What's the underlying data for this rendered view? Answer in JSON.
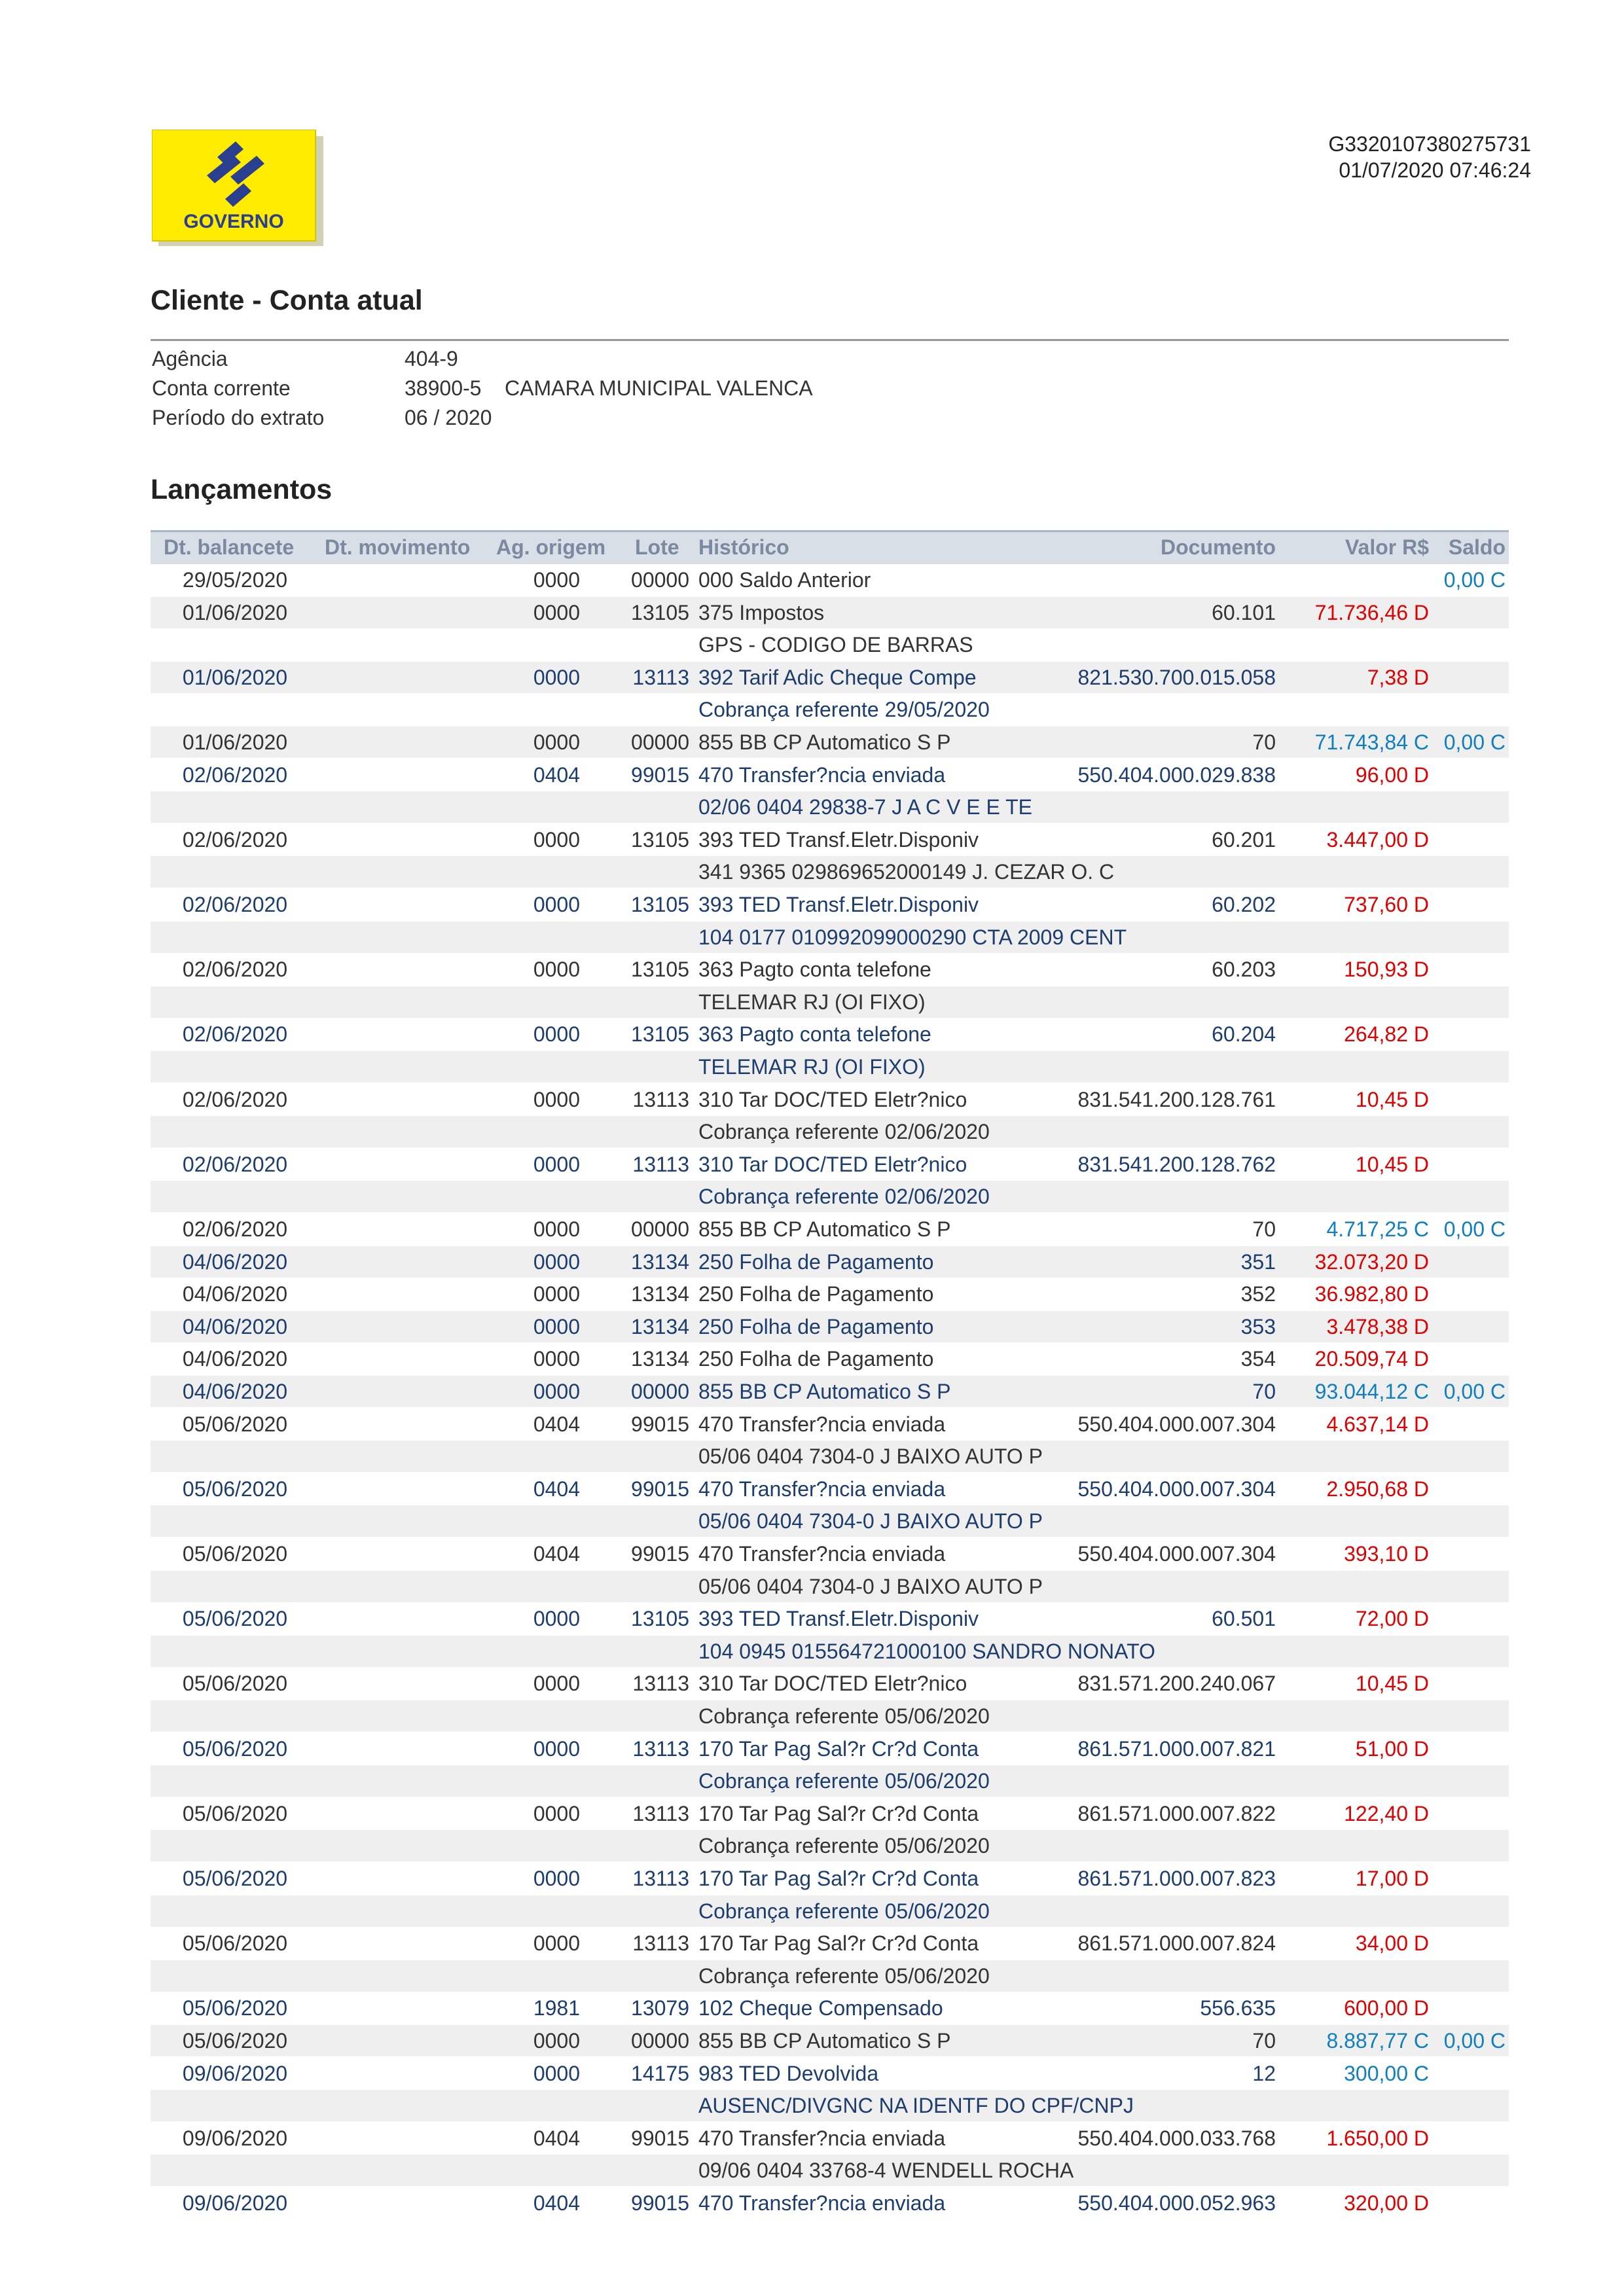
{
  "header": {
    "logo_text": "GOVERNO",
    "code": "G3320107380275731",
    "datetime": "01/07/2020 07:46:24"
  },
  "title": "Cliente - Conta atual",
  "info": [
    {
      "label": "Agência",
      "value": "404-9"
    },
    {
      "label": "Conta corrente",
      "value": "38900-5",
      "name": "CAMARA MUNICIPAL VALENCA"
    },
    {
      "label": "Período do extrato",
      "value": "06 / 2020"
    }
  ],
  "section_title": "Lançamentos",
  "table": {
    "headers": {
      "dt_balancete": "Dt. balancete",
      "dt_movimento": "Dt. movimento",
      "ag_origem": "Ag. origem",
      "lote": "Lote",
      "historico": "Histórico",
      "documento": "Documento",
      "valor": "Valor R$",
      "saldo": "Saldo"
    },
    "rows": [
      {
        "dt_balancete": "29/05/2020",
        "ag_origem": "0000",
        "lote": "00000",
        "historico": "000 Saldo Anterior",
        "saldo": "0,00 C"
      },
      {
        "dt_balancete": "01/06/2020",
        "ag_origem": "0000",
        "lote": "13105",
        "historico": "375 Impostos",
        "documento": "60.101",
        "valor": "71.736,46 D"
      },
      {
        "historico": "GPS - CODIGO DE BARRAS"
      },
      {
        "dt_balancete": "01/06/2020",
        "ag_origem": "0000",
        "lote": "13113",
        "historico": "392 Tarif Adic Cheque Compe",
        "documento": "821.530.700.015.058",
        "valor": "7,38 D"
      },
      {
        "historico": "Cobrança referente 29/05/2020"
      },
      {
        "dt_balancete": "01/06/2020",
        "ag_origem": "0000",
        "lote": "00000",
        "historico": "855 BB CP Automatico S P",
        "documento": "70",
        "valor": "71.743,84 C",
        "saldo": "0,00 C"
      },
      {
        "dt_balancete": "02/06/2020",
        "ag_origem": "0404",
        "lote": "99015",
        "historico": "470 Transfer?ncia enviada",
        "documento": "550.404.000.029.838",
        "valor": "96,00 D"
      },
      {
        "historico": "02/06 0404 29838-7 J A C V E E TE"
      },
      {
        "dt_balancete": "02/06/2020",
        "ag_origem": "0000",
        "lote": "13105",
        "historico": "393 TED Transf.Eletr.Disponiv",
        "documento": "60.201",
        "valor": "3.447,00 D"
      },
      {
        "historico": "341 9365 029869652000149 J. CEZAR O. C"
      },
      {
        "dt_balancete": "02/06/2020",
        "ag_origem": "0000",
        "lote": "13105",
        "historico": "393 TED Transf.Eletr.Disponiv",
        "documento": "60.202",
        "valor": "737,60 D"
      },
      {
        "historico": "104 0177 010992099000290 CTA 2009 CENT"
      },
      {
        "dt_balancete": "02/06/2020",
        "ag_origem": "0000",
        "lote": "13105",
        "historico": "363 Pagto conta telefone",
        "documento": "60.203",
        "valor": "150,93 D"
      },
      {
        "historico": "TELEMAR RJ (OI FIXO)"
      },
      {
        "dt_balancete": "02/06/2020",
        "ag_origem": "0000",
        "lote": "13105",
        "historico": "363 Pagto conta telefone",
        "documento": "60.204",
        "valor": "264,82 D"
      },
      {
        "historico": "TELEMAR RJ (OI FIXO)"
      },
      {
        "dt_balancete": "02/06/2020",
        "ag_origem": "0000",
        "lote": "13113",
        "historico": "310 Tar DOC/TED Eletr?nico",
        "documento": "831.541.200.128.761",
        "valor": "10,45 D"
      },
      {
        "historico": "Cobrança referente 02/06/2020"
      },
      {
        "dt_balancete": "02/06/2020",
        "ag_origem": "0000",
        "lote": "13113",
        "historico": "310 Tar DOC/TED Eletr?nico",
        "documento": "831.541.200.128.762",
        "valor": "10,45 D"
      },
      {
        "historico": "Cobrança referente 02/06/2020"
      },
      {
        "dt_balancete": "02/06/2020",
        "ag_origem": "0000",
        "lote": "00000",
        "historico": "855 BB CP Automatico S P",
        "documento": "70",
        "valor": "4.717,25 C",
        "saldo": "0,00 C"
      },
      {
        "dt_balancete": "04/06/2020",
        "ag_origem": "0000",
        "lote": "13134",
        "historico": "250 Folha de Pagamento",
        "documento": "351",
        "valor": "32.073,20 D"
      },
      {
        "dt_balancete": "04/06/2020",
        "ag_origem": "0000",
        "lote": "13134",
        "historico": "250 Folha de Pagamento",
        "documento": "352",
        "valor": "36.982,80 D"
      },
      {
        "dt_balancete": "04/06/2020",
        "ag_origem": "0000",
        "lote": "13134",
        "historico": "250 Folha de Pagamento",
        "documento": "353",
        "valor": "3.478,38 D"
      },
      {
        "dt_balancete": "04/06/2020",
        "ag_origem": "0000",
        "lote": "13134",
        "historico": "250 Folha de Pagamento",
        "documento": "354",
        "valor": "20.509,74 D"
      },
      {
        "dt_balancete": "04/06/2020",
        "ag_origem": "0000",
        "lote": "00000",
        "historico": "855 BB CP Automatico S P",
        "documento": "70",
        "valor": "93.044,12 C",
        "saldo": "0,00 C"
      },
      {
        "dt_balancete": "05/06/2020",
        "ag_origem": "0404",
        "lote": "99015",
        "historico": "470 Transfer?ncia enviada",
        "documento": "550.404.000.007.304",
        "valor": "4.637,14 D"
      },
      {
        "historico": "05/06 0404 7304-0 J BAIXO AUTO P"
      },
      {
        "dt_balancete": "05/06/2020",
        "ag_origem": "0404",
        "lote": "99015",
        "historico": "470 Transfer?ncia enviada",
        "documento": "550.404.000.007.304",
        "valor": "2.950,68 D"
      },
      {
        "historico": "05/06 0404 7304-0 J BAIXO AUTO P"
      },
      {
        "dt_balancete": "05/06/2020",
        "ag_origem": "0404",
        "lote": "99015",
        "historico": "470 Transfer?ncia enviada",
        "documento": "550.404.000.007.304",
        "valor": "393,10 D"
      },
      {
        "historico": "05/06 0404 7304-0 J BAIXO AUTO P"
      },
      {
        "dt_balancete": "05/06/2020",
        "ag_origem": "0000",
        "lote": "13105",
        "historico": "393 TED Transf.Eletr.Disponiv",
        "documento": "60.501",
        "valor": "72,00 D"
      },
      {
        "historico": "104 0945 015564721000100 SANDRO NONATO"
      },
      {
        "dt_balancete": "05/06/2020",
        "ag_origem": "0000",
        "lote": "13113",
        "historico": "310 Tar DOC/TED Eletr?nico",
        "documento": "831.571.200.240.067",
        "valor": "10,45 D"
      },
      {
        "historico": "Cobrança referente 05/06/2020"
      },
      {
        "dt_balancete": "05/06/2020",
        "ag_origem": "0000",
        "lote": "13113",
        "historico": "170 Tar Pag Sal?r Cr?d Conta",
        "documento": "861.571.000.007.821",
        "valor": "51,00 D"
      },
      {
        "historico": "Cobrança referente 05/06/2020"
      },
      {
        "dt_balancete": "05/06/2020",
        "ag_origem": "0000",
        "lote": "13113",
        "historico": "170 Tar Pag Sal?r Cr?d Conta",
        "documento": "861.571.000.007.822",
        "valor": "122,40 D"
      },
      {
        "historico": "Cobrança referente 05/06/2020"
      },
      {
        "dt_balancete": "05/06/2020",
        "ag_origem": "0000",
        "lote": "13113",
        "historico": "170 Tar Pag Sal?r Cr?d Conta",
        "documento": "861.571.000.007.823",
        "valor": "17,00 D"
      },
      {
        "historico": "Cobrança referente 05/06/2020"
      },
      {
        "dt_balancete": "05/06/2020",
        "ag_origem": "0000",
        "lote": "13113",
        "historico": "170 Tar Pag Sal?r Cr?d Conta",
        "documento": "861.571.000.007.824",
        "valor": "34,00 D"
      },
      {
        "historico": "Cobrança referente 05/06/2020"
      },
      {
        "dt_balancete": "05/06/2020",
        "ag_origem": "1981",
        "lote": "13079",
        "historico": "102 Cheque Compensado",
        "documento": "556.635",
        "valor": "600,00 D"
      },
      {
        "dt_balancete": "05/06/2020",
        "ag_origem": "0000",
        "lote": "00000",
        "historico": "855 BB CP Automatico S P",
        "documento": "70",
        "valor": "8.887,77 C",
        "saldo": "0,00 C"
      },
      {
        "dt_balancete": "09/06/2020",
        "ag_origem": "0000",
        "lote": "14175",
        "historico": "983 TED Devolvida",
        "documento": "12",
        "valor": "300,00 C"
      },
      {
        "historico": "AUSENC/DIVGNC NA IDENTF DO CPF/CNPJ"
      },
      {
        "dt_balancete": "09/06/2020",
        "ag_origem": "0404",
        "lote": "99015",
        "historico": "470 Transfer?ncia enviada",
        "documento": "550.404.000.033.768",
        "valor": "1.650,00 D"
      },
      {
        "historico": "09/06 0404 33768-4 WENDELL ROCHA"
      },
      {
        "dt_balancete": "09/06/2020",
        "ag_origem": "0404",
        "lote": "99015",
        "historico": "470 Transfer?ncia enviada",
        "documento": "550.404.000.052.963",
        "valor": "320,00 D"
      }
    ]
  }
}
